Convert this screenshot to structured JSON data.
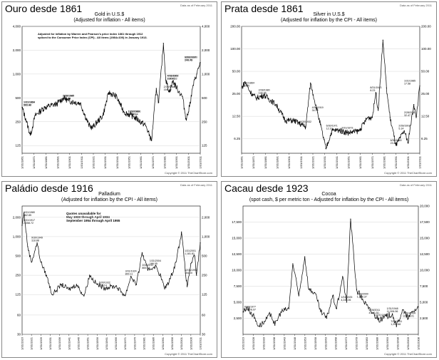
{
  "panels": [
    {
      "heading": "Ouro desde 1861",
      "title": "Gold in U.S.$",
      "subtitle": "(Adjusted for inflation - All items)",
      "stamp": "Data as of February 2011",
      "copyright": "Copyright © 2011 TheChartStore.com",
      "note": "Adjusted for inflation by Warren and Pearson's price index 1861 through 1912\nspliced to the Consumer Price Index (CPI) - All items (1984=100) in January 1913.",
      "yticks": [
        "4,000",
        "2,000",
        "1,000",
        "500",
        "250",
        "125"
      ],
      "yticks_right": [
        "4,000",
        "2,000",
        "1,000",
        "500",
        "250",
        "125"
      ],
      "xticks": [
        "1/31/1861",
        "1/31/1871",
        "1/31/1881",
        "1/31/1891",
        "1/31/1901",
        "1/31/1911",
        "1/31/1921",
        "1/31/1931",
        "1/31/1941",
        "1/31/1951",
        "1/31/1961",
        "1/31/1971",
        "1/31/1981",
        "1/31/1991",
        "1/31/2001",
        "1/31/2011"
      ],
      "annotations": [
        "1/31/1864",
        "273.42",
        "7/31/1867",
        "202.45",
        "11/30/1896",
        "170.71",
        "1/31/1934",
        "582.60",
        "4/30/2001",
        "1,400.22",
        "1/31/1980",
        "2,448.94",
        "2/28/1947",
        "325.55",
        "6/30/1999",
        "272.73",
        "2/29/1868",
        "169.32",
        "1/31/1985",
        "593.78",
        "12/31/1970",
        "144.46"
      ],
      "chart_data": {
        "type": "line",
        "title": "Gold in U.S.$",
        "x": [
          1861,
          1864,
          1868,
          1872,
          1880,
          1890,
          1896,
          1900,
          1910,
          1917,
          1920,
          1929,
          1934,
          1940,
          1947,
          1955,
          1965,
          1970,
          1974,
          1976,
          1980,
          1982,
          1985,
          1988,
          1993,
          1996,
          1999,
          2001,
          2005,
          2008,
          2011
        ],
        "values": [
          380,
          273,
          169,
          300,
          380,
          420,
          500,
          460,
          430,
          230,
          210,
          300,
          585,
          530,
          330,
          290,
          225,
          144,
          660,
          440,
          2449,
          840,
          594,
          820,
          600,
          520,
          273,
          330,
          720,
          1000,
          1400
        ],
        "ylim": [
          100,
          4000
        ],
        "log_scale": true
      }
    },
    {
      "heading": "Prata desde 1861",
      "title": "Silver in U.S.$",
      "subtitle": "(Adjusted for inflation by the CPI - All items)",
      "stamp": "Data as of February 2011",
      "copyright": "Copyright © 2011 TheChartStore.com",
      "note": "",
      "yticks": [
        "200.00",
        "100.00",
        "50.00",
        "25.00",
        "12.50",
        "6.25"
      ],
      "yticks_right": [
        "200.00",
        "100.00",
        "50.00",
        "25.00",
        "12.50",
        "6.25"
      ],
      "xticks": [
        "1/31/1861",
        "1/31/1871",
        "1/31/1881",
        "1/31/1891",
        "1/31/1901",
        "1/31/1911",
        "1/31/1921",
        "1/31/1931",
        "1/31/1941",
        "1/31/1951",
        "1/31/1961",
        "1/31/1971",
        "1/31/1981",
        "1/31/1991",
        "1/31/2001",
        "1/31/2011"
      ],
      "annotations": [
        "8/31/1864",
        "35.75",
        "6/30/1880",
        "23.65",
        "4/30/1919",
        "34.72",
        "2/28/1980",
        "130.95",
        "2/28/2011",
        "32.47",
        "3/31/1873",
        "21.96",
        "6/30/1932",
        "4.56",
        "2/28/1991",
        "5.14",
        "8/31/1943",
        "8.23",
        "6/30/1971",
        "12.10",
        "1/31/1985",
        "17.58"
      ],
      "chart_data": {
        "type": "line",
        "title": "Silver in U.S.$",
        "x": [
          1861,
          1864,
          1868,
          1873,
          1880,
          1890,
          1898,
          1905,
          1915,
          1919,
          1925,
          1932,
          1937,
          1943,
          1950,
          1960,
          1967,
          1971,
          1974,
          1976,
          1980,
          1983,
          1986,
          1991,
          1998,
          2001,
          2006,
          2008,
          2011
        ],
        "values": [
          30,
          36,
          27,
          22,
          24,
          18,
          11,
          11,
          9,
          35,
          14,
          4.6,
          8,
          8.2,
          7.5,
          8,
          12,
          12.1,
          26,
          15,
          131,
          30,
          12,
          5.1,
          8,
          5.5,
          18,
          12,
          32
        ],
        "ylim": [
          4,
          200
        ],
        "log_scale": true
      }
    },
    {
      "heading": "Paládio desde 1916",
      "title": "Palladium",
      "subtitle": "(Adjusted for inflation by the CPI - All items)",
      "stamp": "Data as of February 2011",
      "copyright": "Copyright © 2011 TheChartStore.com",
      "note": "Quotes unavailable for\nMay 1933 through April 1934\nSeptember 1954 through April 1955",
      "yticks": [
        "2,000",
        "1,000",
        "500",
        "250",
        "125",
        "60",
        "30"
      ],
      "yticks_right": [
        "2,000",
        "1,000",
        "500",
        "250",
        "125",
        "60",
        "30"
      ],
      "xticks": [
        "1/31/1916",
        "1/31/1921",
        "1/31/1926",
        "1/31/1931",
        "1/31/1936",
        "1/31/1941",
        "1/31/1946",
        "1/31/1951",
        "1/31/1956",
        "1/31/1961",
        "1/31/1966",
        "1/31/1971",
        "1/31/1976",
        "1/31/1981",
        "1/31/1986",
        "1/31/1991",
        "1/31/1996",
        "1/31/2001",
        "1/31/2006",
        "1/31/2011"
      ],
      "annotations": [
        "1/31/1917",
        "2,358.72",
        "1/31/2001",
        "1,181.81",
        "2/28/2011",
        "800.15",
        "3/31/1924",
        "800.11",
        "6/30/1932",
        "125.14",
        "9/30/1949",
        "118.88",
        "3/31/1980",
        "562.85",
        "12/31/1992",
        "154.10",
        "1/31/2004",
        "166.05"
      ],
      "chart_data": {
        "type": "line",
        "title": "Palladium",
        "x": [
          1916,
          1917,
          1919,
          1921,
          1924,
          1926,
          1929,
          1932,
          1937,
          1941,
          1945,
          1949,
          1952,
          1956,
          1960,
          1966,
          1971,
          1974,
          1977,
          1980,
          1983,
          1987,
          1990,
          1992,
          1995,
          1998,
          2001,
          2003,
          2004,
          2006,
          2008,
          2009,
          2011
        ],
        "values": [
          1500,
          2359,
          700,
          400,
          800,
          400,
          250,
          125,
          180,
          150,
          180,
          119,
          250,
          180,
          160,
          170,
          120,
          240,
          180,
          563,
          300,
          350,
          240,
          154,
          220,
          400,
          1182,
          300,
          166,
          380,
          500,
          250,
          800
        ],
        "ylim": [
          30,
          3000
        ],
        "log_scale": true
      }
    },
    {
      "heading": "Cacau desde 1923",
      "title": "Cocoa",
      "subtitle": "(spot cash, $ per metric ton - Adjusted for inflation by the CPI - All items)",
      "stamp": "Data as of February 2011",
      "copyright": "Copyright © 2011 TheChartStore.com",
      "note": "",
      "yticks": [
        "17,500",
        "15,000",
        "12,500",
        "10,000",
        "7,500",
        "5,000",
        "2,500"
      ],
      "yticks_right": [
        "20,000",
        "17,500",
        "15,000",
        "12,500",
        "10,000",
        "7,500",
        "5,000",
        "2,500"
      ],
      "xticks": [
        "1/31/1923",
        "1/31/1928",
        "1/31/1933",
        "1/31/1938",
        "1/31/1943",
        "1/31/1948",
        "1/31/1953",
        "1/31/1958",
        "1/31/1963",
        "1/31/1968",
        "1/31/1973",
        "1/31/1978",
        "1/31/1983",
        "1/31/1988",
        "1/31/1993",
        "1/31/1998",
        "1/31/2003",
        "1/31/2008"
      ],
      "annotations": [
        "6/30/1977",
        "17,978.97",
        "10/31/1954",
        "12,095.01",
        "1/31/1948",
        "11,006.96",
        "2/28/2011",
        "4,243.30",
        "7/31/1931",
        "1,299.68",
        "10/31/1939",
        "1,417.32",
        "6/30/2000",
        "1,198.37",
        "1/31/1925",
        "4,243.06"
      ],
      "chart_data": {
        "type": "line",
        "title": "Cocoa",
        "x": [
          1923,
          1925,
          1928,
          1931,
          1934,
          1937,
          1939,
          1942,
          1946,
          1948,
          1951,
          1954,
          1956,
          1959,
          1962,
          1965,
          1968,
          1970,
          1973,
          1975,
          1977,
          1980,
          1983,
          1986,
          1989,
          1992,
          1995,
          1998,
          2000,
          2003,
          2006,
          2008,
          2011
        ],
        "values": [
          3500,
          4243,
          3000,
          1300,
          2000,
          3200,
          1417,
          3500,
          4000,
          11007,
          6000,
          12095,
          7000,
          6500,
          3500,
          2500,
          6000,
          4000,
          9000,
          5000,
          17979,
          7000,
          5500,
          4000,
          3000,
          2200,
          2800,
          3200,
          1198,
          3800,
          2500,
          3500,
          4243
        ],
        "ylim": [
          0,
          20000
        ],
        "log_scale": false
      }
    }
  ]
}
